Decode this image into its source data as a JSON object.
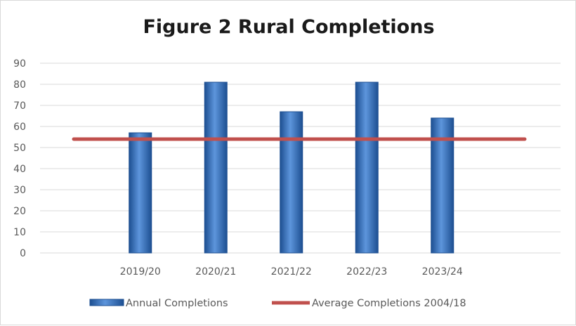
{
  "chart_data": {
    "type": "bar",
    "title": "Figure 2 Rural Completions",
    "xlabel": "",
    "ylabel": "",
    "categories": [
      "2019/20",
      "2020/21",
      "2021/22",
      "2022/23",
      "2023/24"
    ],
    "series": [
      {
        "name": "Annual Completions",
        "type": "bar",
        "values": [
          57,
          81,
          67,
          81,
          64
        ]
      },
      {
        "name": "Average Completions 2004/18",
        "type": "line",
        "value": 54
      }
    ],
    "ylim": [
      0,
      90
    ],
    "yticks": [
      "0",
      "10",
      "20",
      "30",
      "40",
      "50",
      "60",
      "70",
      "80",
      "90"
    ],
    "grid": true,
    "legend_position": "bottom",
    "colors": {
      "bar": "#2e6fc4",
      "bar_dark": "#1d4f91",
      "bar_light": "#5d95dc",
      "average_line": "#c0504d",
      "grid": "#d9d9d9"
    }
  }
}
